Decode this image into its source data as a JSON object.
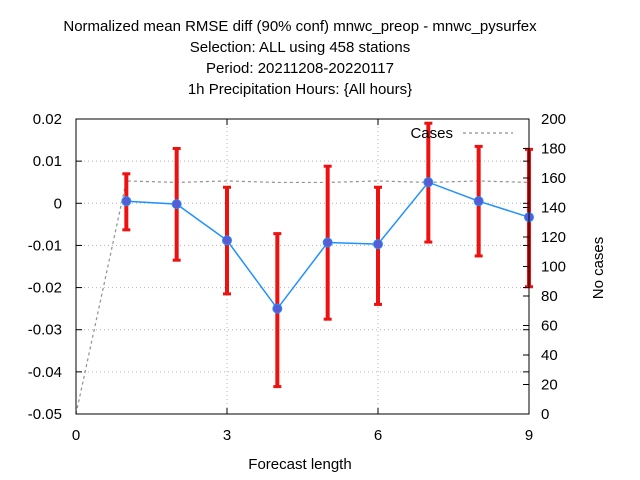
{
  "chart_data": {
    "type": "line",
    "title_lines": [
      "Normalized mean RMSE diff (90% conf) mnwc_preop - mnwc_pysurfex",
      "Selection: ALL using   458 stations",
      "Period: 20211208-20220117",
      "1h Precipitation    Hours: {All hours}"
    ],
    "xlabel": "Forecast length",
    "ylabel_right": "No cases",
    "xlim": [
      0,
      9
    ],
    "ylim": [
      -0.05,
      0.02
    ],
    "y2lim": [
      0,
      200
    ],
    "x_ticks": [
      0,
      3,
      6,
      9
    ],
    "y_ticks": [
      -0.05,
      -0.04,
      -0.03,
      -0.02,
      -0.01,
      0,
      0.01,
      0.02
    ],
    "y_tick_labels": [
      "-0.05",
      "-0.04",
      "-0.03",
      "-0.02",
      "-0.01",
      "0",
      "0.01",
      "0.02"
    ],
    "y2_ticks": [
      0,
      20,
      40,
      60,
      80,
      100,
      120,
      140,
      160,
      180,
      200
    ],
    "grid": true,
    "legend": {
      "label": "Cases",
      "position": "top-right"
    },
    "colors": {
      "line": "#1e90ff",
      "marker": "#5a5ad2",
      "error_bar": "#ee1111",
      "cases": "#909090",
      "grid": "#b4b4b4"
    },
    "series": [
      {
        "name": "RMSE diff",
        "x": [
          1,
          2,
          3,
          4,
          5,
          6,
          7,
          8,
          9
        ],
        "values": [
          0.0005,
          -0.0002,
          -0.0088,
          -0.025,
          -0.0093,
          -0.0097,
          0.005,
          0.0005,
          -0.0033
        ],
        "err_low": [
          -0.0063,
          -0.0135,
          -0.0215,
          -0.0435,
          -0.0275,
          -0.024,
          -0.0092,
          -0.0125,
          -0.0198
        ],
        "err_high": [
          0.007,
          0.013,
          0.0038,
          -0.0072,
          0.0088,
          0.0038,
          0.019,
          0.0135,
          0.0128
        ]
      },
      {
        "name": "Cases",
        "axis": "right",
        "x": [
          0,
          1,
          2,
          3,
          4,
          5,
          6,
          7,
          8,
          9
        ],
        "values": [
          0,
          158,
          157,
          158,
          157,
          157,
          158,
          157,
          158,
          157
        ]
      }
    ]
  }
}
